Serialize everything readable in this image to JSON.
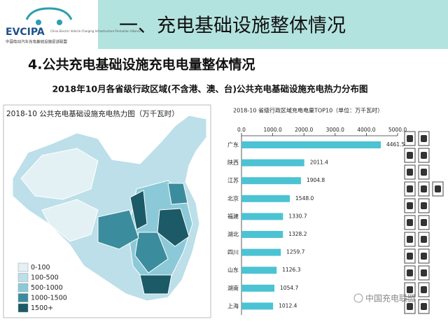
{
  "header": {
    "logo": "EVCIPA",
    "logo_en": "China Electric Vehicle Charging Infrastructure Promotion Alliance",
    "logo_cn": "中国电动汽车充电基础设施促进联盟",
    "title": "一、充电基础设施整体情况"
  },
  "section_title": "4.公共充电基础设施充电电量整体情况",
  "figure_title": "2018年10月各省级行政区域(不含港、澳、台)公共充电基础设施充电热力分布图",
  "map": {
    "title": "2018-10 公共充电基础设施充电热力图（万千瓦时）",
    "legend": [
      {
        "label": "0-100",
        "color": "#e3f1f5"
      },
      {
        "label": "100-500",
        "color": "#bcdfe9"
      },
      {
        "label": "500-1000",
        "color": "#8cc9d8"
      },
      {
        "label": "1000-1500",
        "color": "#3b8d9d"
      },
      {
        "label": "1500+",
        "color": "#1b5a66"
      }
    ]
  },
  "chart_data": {
    "type": "bar",
    "orientation": "horizontal",
    "title": "2018-10 省级行政区域充电电量TOP10（单位：万千瓦时）",
    "categories": [
      "广东",
      "陕西",
      "江苏",
      "北京",
      "福建",
      "湖北",
      "四川",
      "山东",
      "湖南",
      "上海"
    ],
    "values": [
      4461.5,
      2011.4,
      1904.8,
      1548.0,
      1330.7,
      1328.2,
      1259.7,
      1126.3,
      1054.7,
      1012.4
    ],
    "value_labels": [
      "4461.5",
      "2011.4",
      "1904.8",
      "1548.0",
      "1330.7",
      "1328.2",
      "1259.7",
      "1126.3",
      "1054.7",
      "1012.4"
    ],
    "color": "#4cc3d3",
    "xlim": [
      0,
      5000
    ],
    "xticks": [
      {
        "value": 0,
        "label": "0.0"
      },
      {
        "value": 1000,
        "label": "1000.0"
      },
      {
        "value": 2000,
        "label": "2000.0"
      },
      {
        "value": 3000,
        "label": "3000.0"
      },
      {
        "value": 4000,
        "label": "4000.0"
      },
      {
        "value": 5000,
        "label": "5000.0"
      }
    ]
  },
  "watermark": "中国充电联盟"
}
